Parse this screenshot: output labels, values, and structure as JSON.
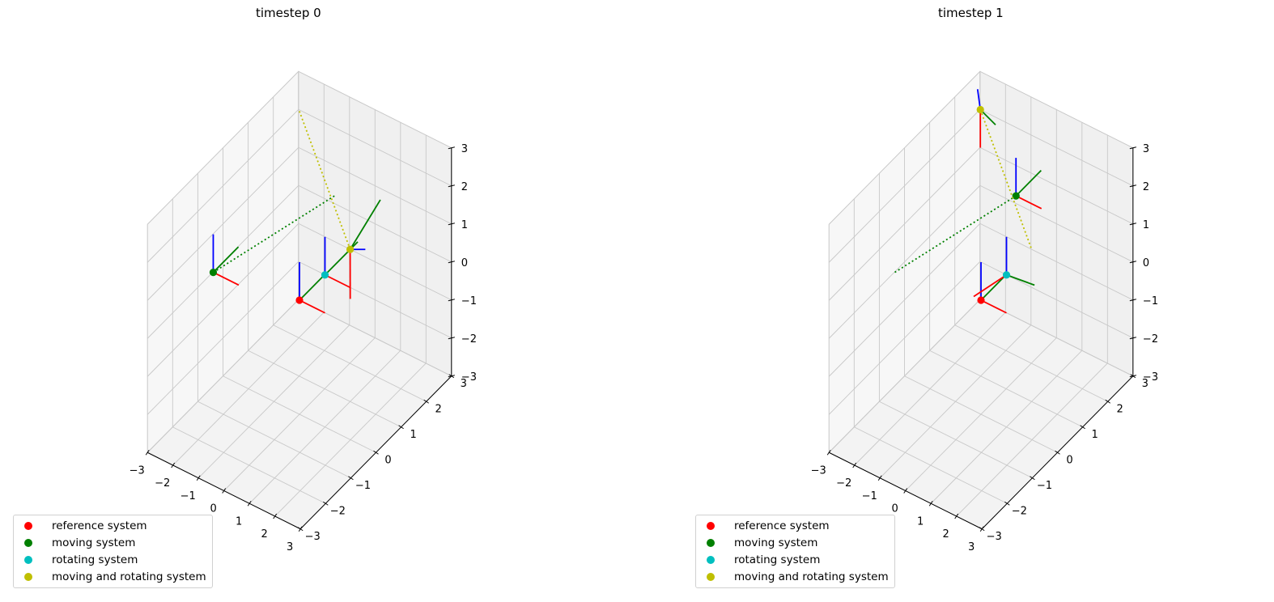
{
  "legend": [
    {
      "label": "reference system",
      "color": "#ff0000"
    },
    {
      "label": "moving system",
      "color": "#008000"
    },
    {
      "label": "rotating system",
      "color": "#00bfbf"
    },
    {
      "label": "moving and rotating system",
      "color": "#bfbf00"
    }
  ],
  "axis_colors": {
    "x": "#ff0000",
    "y": "#008000",
    "z": "#0000ff"
  },
  "chart_data": [
    {
      "type": "scatter3d",
      "title": "timestep 0",
      "xlim": [
        -3,
        3
      ],
      "ylim": [
        -3,
        3
      ],
      "zlim": [
        -3,
        3
      ],
      "x_ticks": [
        "−3",
        "−2",
        "−1",
        "0",
        "1",
        "2",
        "3"
      ],
      "y_ticks": [
        "−3",
        "−2",
        "−1",
        "0",
        "1",
        "2",
        "3"
      ],
      "z_ticks": [
        "−3",
        "−2",
        "−1",
        "0",
        "1",
        "2",
        "3"
      ],
      "grid": true,
      "legend_position": "lower-left",
      "systems": [
        {
          "name": "reference system",
          "origin": [
            0,
            0,
            0
          ],
          "color": "#ff0000",
          "x_axis": [
            1,
            0,
            0
          ],
          "y_axis": [
            0,
            1,
            0
          ],
          "z_axis": [
            0,
            0,
            1
          ],
          "trail": null
        },
        {
          "name": "moving system",
          "origin": [
            -2,
            -1.4,
            1
          ],
          "color": "#008000",
          "x_axis": [
            1,
            0,
            0
          ],
          "y_axis": [
            0,
            1,
            0
          ],
          "z_axis": [
            0,
            0,
            1
          ],
          "trail": [
            -0.8,
            2.2,
            1
          ]
        },
        {
          "name": "rotating system",
          "origin": [
            1,
            0,
            1
          ],
          "color": "#00bfbf",
          "x_axis": [
            1,
            0,
            0
          ],
          "y_axis": [
            0.2,
            1.1,
            0.2
          ],
          "z_axis": [
            0,
            0,
            1
          ],
          "trail": null
        },
        {
          "name": "moving and rotating system",
          "origin": [
            1,
            1,
            1
          ],
          "color": "#bfbf00",
          "x_axis": [
            0.3,
            -0.3,
            -1
          ],
          "y_axis": [
            0,
            1.2,
            0.5
          ],
          "z_axis": [
            0.3,
            0.3,
            -0.1
          ],
          "trail": [
            -2,
            2,
            3
          ]
        }
      ]
    },
    {
      "type": "scatter3d",
      "title": "timestep 1",
      "xlim": [
        -3,
        3
      ],
      "ylim": [
        -3,
        3
      ],
      "zlim": [
        -3,
        3
      ],
      "x_ticks": [
        "−3",
        "−2",
        "−1",
        "0",
        "1",
        "2",
        "3"
      ],
      "y_ticks": [
        "−3",
        "−2",
        "−1",
        "0",
        "1",
        "2",
        "3"
      ],
      "z_ticks": [
        "−3",
        "−2",
        "−1",
        "0",
        "1",
        "2",
        "3"
      ],
      "grid": true,
      "legend_position": "lower-left",
      "systems": [
        {
          "name": "reference system",
          "origin": [
            0,
            0,
            0
          ],
          "color": "#ff0000",
          "x_axis": [
            1,
            0,
            0
          ],
          "y_axis": [
            0,
            1,
            0
          ],
          "z_axis": [
            0,
            0,
            1
          ],
          "trail": null
        },
        {
          "name": "moving system",
          "origin": [
            -0.8,
            2.2,
            1
          ],
          "color": "#008000",
          "x_axis": [
            1,
            0,
            0
          ],
          "y_axis": [
            0,
            1,
            0
          ],
          "z_axis": [
            0,
            0,
            1
          ],
          "trail": [
            -2,
            -1.4,
            1
          ]
        },
        {
          "name": "rotating system",
          "origin": [
            1,
            0,
            1
          ],
          "color": "#00bfbf",
          "x_axis": [
            -0.3,
            -1,
            0
          ],
          "y_axis": [
            1,
            0.1,
            0
          ],
          "z_axis": [
            0,
            0,
            1
          ],
          "trail": null
        },
        {
          "name": "moving and rotating system",
          "origin": [
            -2,
            2,
            3
          ],
          "color": "#bfbf00",
          "x_axis": [
            0,
            0,
            -1
          ],
          "y_axis": [
            0.3,
            0.3,
            -0.5
          ],
          "z_axis": [
            -0.8,
            0.7,
            -0.2
          ],
          "trail": [
            1,
            1,
            1
          ]
        }
      ]
    }
  ]
}
